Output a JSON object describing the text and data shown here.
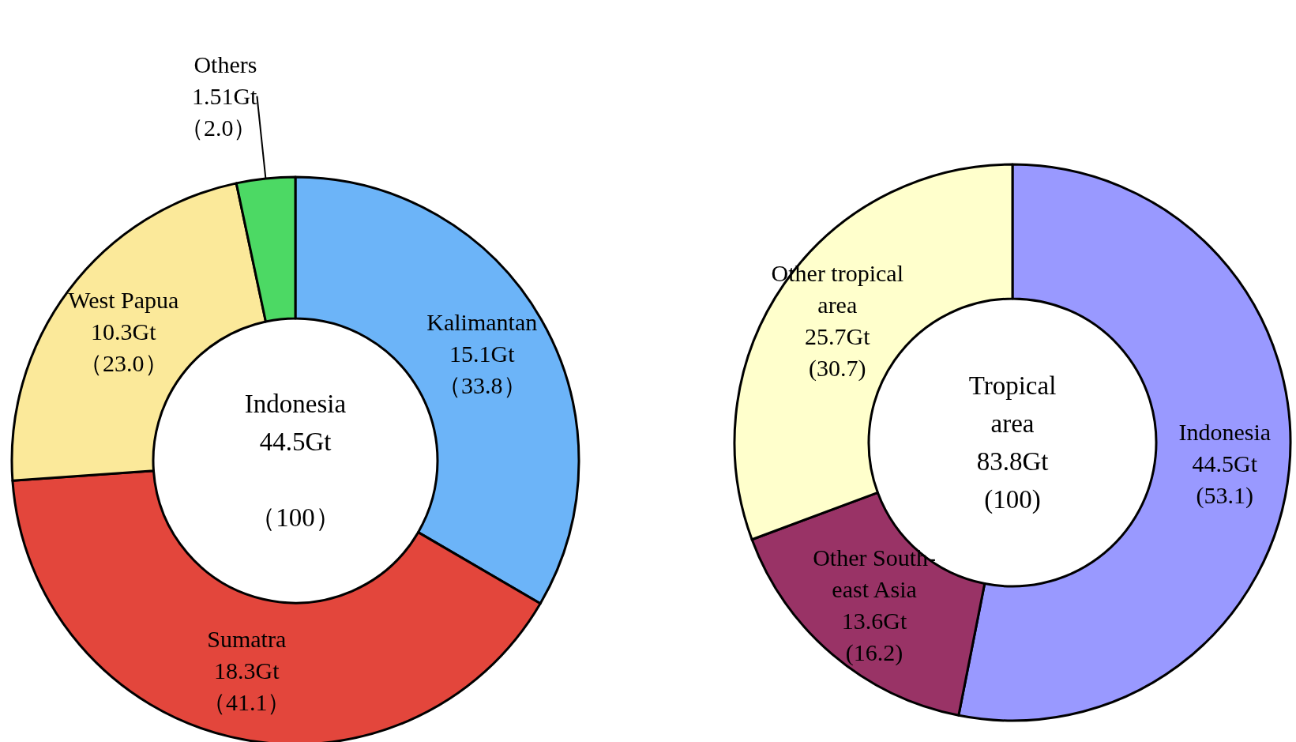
{
  "chart_data": [
    {
      "type": "donut",
      "categories": [
        "Kalimantan",
        "Sumatra",
        "West Papua",
        "Others"
      ],
      "values": [
        15.1,
        18.3,
        10.3,
        1.51
      ],
      "colors": [
        "#6cb4f8",
        "#e3463c",
        "#fbe99a",
        "#4cd964"
      ],
      "value_labels": [
        "15.1Gt\n（33.8）",
        "18.3Gt\n（41.1）",
        "10.3Gt\n（23.0）",
        "1.51Gt\n（2.0）"
      ],
      "annotations": [
        "Indonesia\n44.5Gt\n\n（100）"
      ],
      "legend": false
    },
    {
      "type": "donut",
      "categories": [
        "Indonesia",
        "Other South-\neast Asia",
        "Other tropical\narea"
      ],
      "values": [
        44.5,
        13.6,
        25.7
      ],
      "colors": [
        "#9999ff",
        "#993366",
        "#ffffcc"
      ],
      "value_labels": [
        "44.5Gt\n(53.1)",
        "13.6Gt\n(16.2)",
        "25.7Gt\n(30.7)"
      ],
      "annotations": [
        "Tropical\narea\n83.8Gt\n(100)"
      ],
      "legend": false
    }
  ]
}
